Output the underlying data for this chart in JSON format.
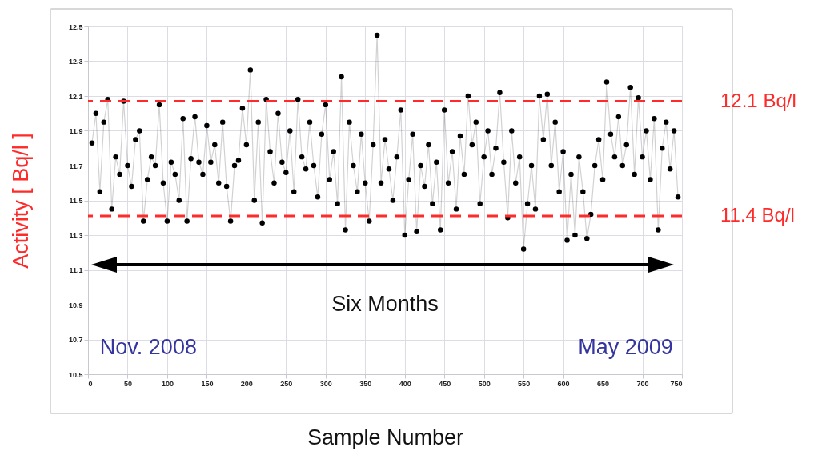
{
  "chart_data": {
    "type": "line",
    "xlabel": "Sample Number",
    "ylabel": "Activity [ Bq/l ]",
    "x": [
      5,
      10,
      15,
      20,
      25,
      30,
      35,
      40,
      45,
      50,
      55,
      60,
      65,
      70,
      75,
      80,
      85,
      90,
      95,
      100,
      105,
      110,
      115,
      120,
      125,
      130,
      135,
      140,
      145,
      150,
      155,
      160,
      165,
      170,
      175,
      180,
      185,
      190,
      195,
      200,
      205,
      210,
      215,
      220,
      225,
      230,
      235,
      240,
      245,
      250,
      255,
      260,
      265,
      270,
      275,
      280,
      285,
      290,
      295,
      300,
      305,
      310,
      315,
      320,
      325,
      330,
      335,
      340,
      345,
      350,
      355,
      360,
      365,
      370,
      375,
      380,
      385,
      390,
      395,
      400,
      405,
      410,
      415,
      420,
      425,
      430,
      435,
      440,
      445,
      450,
      455,
      460,
      465,
      470,
      475,
      480,
      485,
      490,
      495,
      500,
      505,
      510,
      515,
      520,
      525,
      530,
      535,
      540,
      545,
      550,
      555,
      560,
      565,
      570,
      575,
      580,
      585,
      590,
      595,
      600,
      605,
      610,
      615,
      620,
      625,
      630,
      635,
      640,
      645,
      650,
      655,
      660,
      665,
      670,
      675,
      680,
      685,
      690,
      695,
      700,
      705,
      710,
      715,
      720,
      725,
      730,
      735,
      740,
      745
    ],
    "series": [
      {
        "color": "#000000",
        "values": [
          11.83,
          12.0,
          11.55,
          11.95,
          12.08,
          11.45,
          11.75,
          11.65,
          12.07,
          11.7,
          11.58,
          11.85,
          11.9,
          11.38,
          11.62,
          11.75,
          11.7,
          12.05,
          11.6,
          11.38,
          11.72,
          11.65,
          11.5,
          11.97,
          11.38,
          11.74,
          11.98,
          11.72,
          11.65,
          11.93,
          11.72,
          11.82,
          11.6,
          11.95,
          11.58,
          11.38,
          11.7,
          11.73,
          12.03,
          11.82,
          12.25,
          11.5,
          11.95,
          11.37,
          12.08,
          11.78,
          11.6,
          12.0,
          11.72,
          11.66,
          11.9,
          11.55,
          12.08,
          11.75,
          11.68,
          11.95,
          11.7,
          11.52,
          11.88,
          12.05,
          11.62,
          11.78,
          11.48,
          12.21,
          11.33,
          11.95,
          11.7,
          11.55,
          11.88,
          11.6,
          11.38,
          11.82,
          12.45,
          11.6,
          11.85,
          11.68,
          11.5,
          11.75,
          12.02,
          11.3,
          11.62,
          11.88,
          11.32,
          11.7,
          11.58,
          11.82,
          11.48,
          11.72,
          11.33,
          12.02,
          11.6,
          11.78,
          11.45,
          11.87,
          11.65,
          12.1,
          11.82,
          11.95,
          11.48,
          11.75,
          11.9,
          11.65,
          11.8,
          12.12,
          11.72,
          11.4,
          11.9,
          11.6,
          11.75,
          11.22,
          11.48,
          11.7,
          11.45,
          12.1,
          11.85,
          12.11,
          11.7,
          11.95,
          11.55,
          11.78,
          11.27,
          11.65,
          11.3,
          11.75,
          11.55,
          11.28,
          11.42,
          11.7,
          11.85,
          11.62,
          12.18,
          11.88,
          11.75,
          11.98,
          11.7,
          11.82,
          12.15,
          11.65,
          12.09,
          11.75,
          11.9,
          11.62,
          11.97,
          11.33,
          11.8,
          11.95,
          11.68,
          11.9,
          11.52
        ]
      }
    ],
    "xlim": [
      0,
      750
    ],
    "xticks": [
      0,
      50,
      100,
      150,
      200,
      250,
      300,
      350,
      400,
      450,
      500,
      550,
      600,
      650,
      700,
      750
    ],
    "ylim": [
      10.5,
      12.5
    ],
    "yticks": [
      10.5,
      10.7,
      10.9,
      11.1,
      11.3,
      11.5,
      11.7,
      11.9,
      12.1,
      12.3,
      12.5
    ],
    "grid": true,
    "marker": "circle",
    "line_style": "solid",
    "ref_lines": [
      {
        "axis": "y",
        "value": 12.07,
        "label": "12.1 Bq/l",
        "color": "#ff2a2a",
        "line_style": "dashed"
      },
      {
        "axis": "y",
        "value": 11.41,
        "label": "11.4 Bq/l",
        "color": "#ff2a2a",
        "line_style": "dashed"
      }
    ],
    "annotations": [
      "Six Months",
      "Nov. 2008",
      "May 2009"
    ]
  }
}
